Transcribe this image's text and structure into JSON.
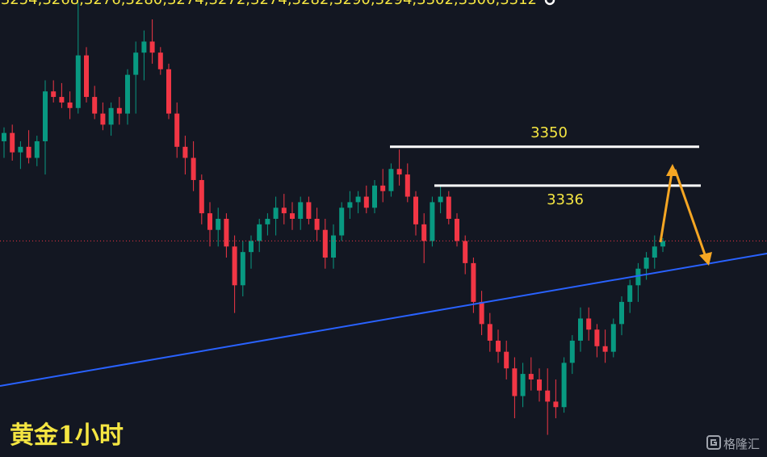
{
  "chart_data": {
    "type": "candlestick",
    "title": "黄金1小时",
    "watermark": "格隆汇",
    "ylim": [
      3238,
      3403
    ],
    "up_color": "#089981",
    "down_color": "#f23645",
    "levels": [
      3350,
      3336
    ],
    "level_color": "#ffffff",
    "low": [
      3346,
      3345,
      3342,
      3344,
      3343,
      3340,
      3366,
      3364,
      3360,
      3362,
      3366,
      3360,
      3356,
      3354,
      3358,
      3358,
      3362,
      3374,
      3380,
      3376,
      3360,
      3346,
      3340,
      3334,
      3322,
      3314,
      3314,
      3310,
      3290,
      3296,
      3306,
      3312,
      3318,
      3318,
      3322,
      3320,
      3320,
      3322,
      3316,
      3306,
      3306,
      3316,
      3324,
      3326,
      3326,
      3326,
      3330,
      3332,
      3336,
      3330,
      3318,
      3308,
      3314,
      3326,
      3322,
      3314,
      3304,
      3290,
      3282,
      3276,
      3272,
      3266,
      3252,
      3256,
      3262,
      3258,
      3246,
      3252,
      3254,
      3268,
      3276,
      3280,
      3274,
      3272,
      3274,
      3282,
      3290,
      3294,
      3302,
      3306,
      3312
    ],
    "open": [
      3352,
      3355,
      3348,
      3350,
      3346,
      3352,
      3370,
      3368,
      3366,
      3364,
      3383,
      3368,
      3362,
      3358,
      3364,
      3362,
      3376,
      3384,
      3388,
      3384,
      3378,
      3362,
      3350,
      3346,
      3338,
      3326,
      3320,
      3324,
      3314,
      3300,
      3312,
      3316,
      3322,
      3324,
      3328,
      3326,
      3324,
      3330,
      3324,
      3320,
      3310,
      3318,
      3328,
      3330,
      3332,
      3328,
      3336,
      3334,
      3342,
      3340,
      3332,
      3322,
      3316,
      3330,
      3332,
      3324,
      3316,
      3308,
      3294,
      3286,
      3280,
      3276,
      3270,
      3260,
      3268,
      3266,
      3262,
      3258,
      3256,
      3272,
      3280,
      3288,
      3284,
      3278,
      3276,
      3286,
      3294,
      3300,
      3306,
      3310,
      3314
    ],
    "high": [
      3357,
      3358,
      3352,
      3356,
      3354,
      3374,
      3374,
      3373,
      3370,
      3402,
      3386,
      3372,
      3366,
      3366,
      3368,
      3378,
      3388,
      3392,
      3396,
      3386,
      3380,
      3366,
      3354,
      3352,
      3340,
      3330,
      3328,
      3326,
      3318,
      3316,
      3318,
      3324,
      3326,
      3332,
      3333,
      3330,
      3332,
      3332,
      3328,
      3324,
      3322,
      3330,
      3334,
      3334,
      3336,
      3338,
      3342,
      3344,
      3349,
      3344,
      3334,
      3326,
      3332,
      3336,
      3334,
      3326,
      3318,
      3310,
      3298,
      3290,
      3284,
      3280,
      3274,
      3272,
      3274,
      3270,
      3270,
      3266,
      3274,
      3282,
      3292,
      3292,
      3286,
      3284,
      3288,
      3296,
      3302,
      3308,
      3312,
      3318,
      3317
    ],
    "close": [
      3355,
      3348,
      3350,
      3346,
      3352,
      3370,
      3368,
      3366,
      3364,
      3383,
      3368,
      3362,
      3358,
      3364,
      3362,
      3376,
      3384,
      3388,
      3384,
      3378,
      3362,
      3350,
      3346,
      3338,
      3326,
      3320,
      3324,
      3314,
      3300,
      3312,
      3316,
      3322,
      3324,
      3328,
      3326,
      3324,
      3330,
      3324,
      3320,
      3310,
      3318,
      3328,
      3330,
      3332,
      3328,
      3336,
      3334,
      3342,
      3340,
      3332,
      3322,
      3316,
      3330,
      3332,
      3324,
      3316,
      3308,
      3294,
      3286,
      3280,
      3276,
      3270,
      3260,
      3268,
      3266,
      3262,
      3258,
      3256,
      3272,
      3280,
      3288,
      3284,
      3278,
      3276,
      3286,
      3294,
      3300,
      3306,
      3310,
      3314,
      3316
    ]
  }
}
